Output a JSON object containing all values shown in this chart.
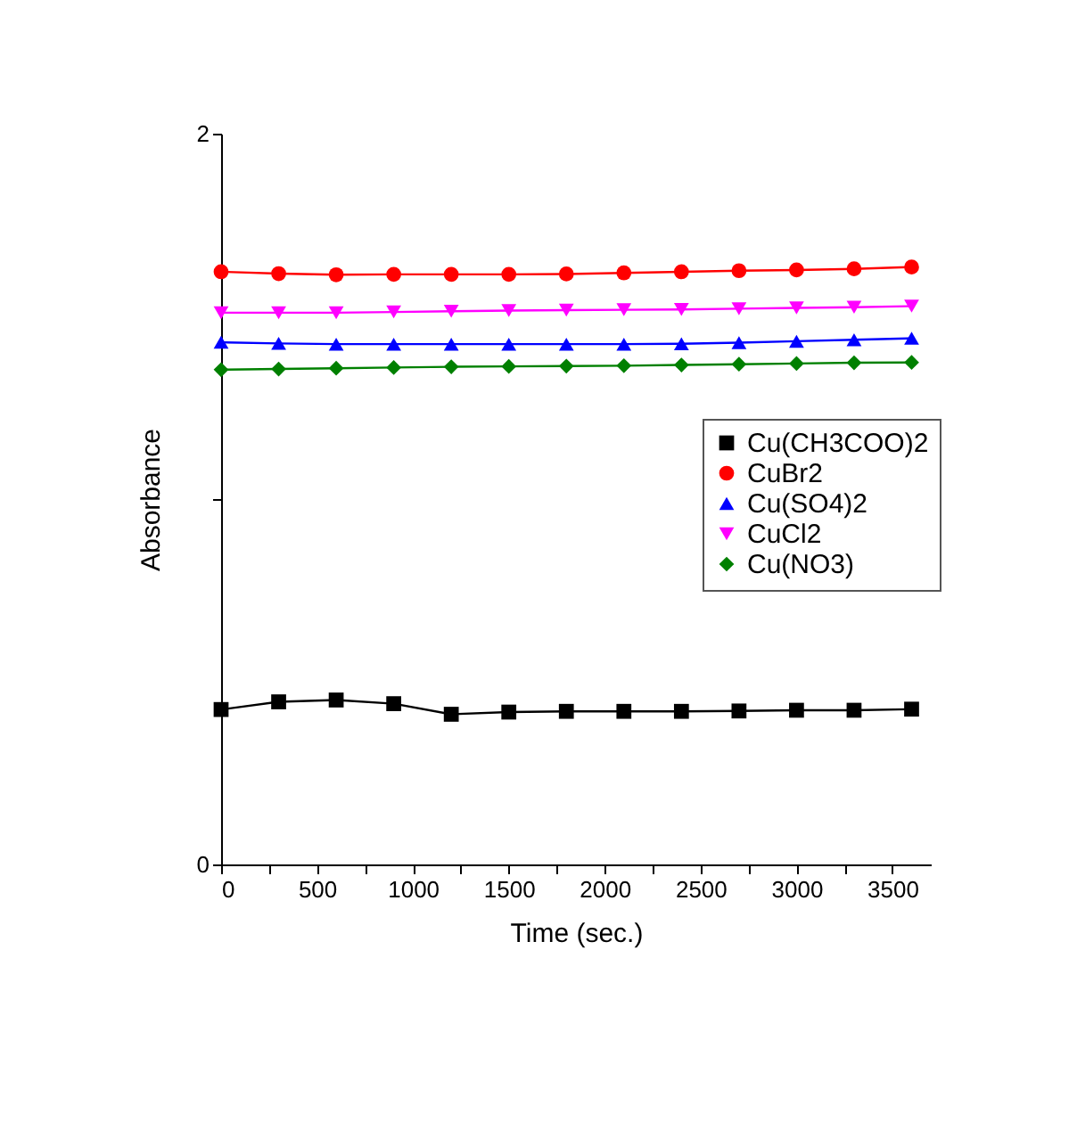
{
  "chart_data": {
    "type": "line",
    "xlabel": "Time (sec.)",
    "ylabel": "Absorbance",
    "x": [
      0,
      300,
      600,
      900,
      1200,
      1500,
      1800,
      2100,
      2400,
      2700,
      3000,
      3300,
      3600
    ],
    "series": [
      {
        "name": "Cu(CH3COO)2",
        "color": "#000000",
        "marker": "square",
        "values": [
          0.424,
          0.445,
          0.45,
          0.44,
          0.411,
          0.417,
          0.419,
          0.419,
          0.419,
          0.42,
          0.422,
          0.422,
          0.425
        ]
      },
      {
        "name": "CuBr2",
        "color": "#ff0000",
        "marker": "circle",
        "values": [
          1.622,
          1.617,
          1.614,
          1.615,
          1.615,
          1.615,
          1.616,
          1.619,
          1.622,
          1.625,
          1.627,
          1.63,
          1.635
        ]
      },
      {
        "name": "Cu(SO4)2",
        "color": "#0000ff",
        "marker": "triangle",
        "values": [
          1.429,
          1.426,
          1.424,
          1.424,
          1.424,
          1.424,
          1.424,
          1.424,
          1.425,
          1.428,
          1.432,
          1.436,
          1.44
        ]
      },
      {
        "name": "CuCl2",
        "color": "#ff00ff",
        "marker": "triangle-down",
        "values": [
          1.51,
          1.51,
          1.51,
          1.512,
          1.514,
          1.516,
          1.517,
          1.518,
          1.519,
          1.521,
          1.523,
          1.525,
          1.528
        ]
      },
      {
        "name": "Cu(NO3)",
        "color": "#008000",
        "marker": "diamond",
        "values": [
          1.354,
          1.356,
          1.358,
          1.36,
          1.362,
          1.363,
          1.364,
          1.365,
          1.367,
          1.369,
          1.371,
          1.373,
          1.374
        ]
      }
    ],
    "xlim": [
      0,
      3700
    ],
    "xticks": [
      0,
      {
        "value": 250,
        "label": null
      },
      500,
      {
        "value": 750,
        "label": null
      },
      1000,
      {
        "value": 1250,
        "label": null
      },
      1500,
      {
        "value": 1750,
        "label": null
      },
      2000,
      {
        "value": 2250,
        "label": null
      },
      2500,
      {
        "value": 2750,
        "label": null
      },
      3000,
      {
        "value": 3250,
        "label": null
      },
      3500
    ],
    "ylim": [
      0,
      2
    ],
    "yticks": [
      0,
      {
        "value": 1,
        "label": null
      },
      2
    ],
    "legend": "right",
    "grid": false
  }
}
